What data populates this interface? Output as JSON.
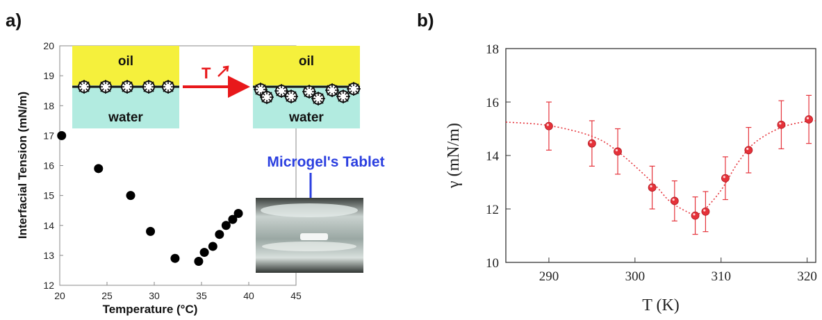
{
  "panels": {
    "a_label": "a)",
    "b_label": "b)"
  },
  "colors": {
    "oil": "#f5f03c",
    "water": "#b2ebe0",
    "arrow_red": "#e8181b",
    "arrow_blue": "#2b3fe0",
    "series_b": "#e5323a"
  },
  "inset": {
    "oil_label": "oil",
    "water_label": "water",
    "arrow_label": "T",
    "tablet_label": "Microgel's Tablet"
  },
  "chart_data": [
    {
      "type": "scatter",
      "panel": "a",
      "xlabel": "Temperature (°C)",
      "ylabel": "Interfacial Tension (mN/m)",
      "xlim": [
        20,
        45
      ],
      "ylim": [
        12,
        20
      ],
      "xticks": [
        20,
        25,
        30,
        35,
        40,
        45
      ],
      "yticks": [
        12,
        13,
        14,
        15,
        16,
        17,
        18,
        19,
        20
      ],
      "grid": false,
      "x": [
        20.2,
        24.1,
        27.5,
        29.6,
        32.2,
        34.7,
        35.3,
        36.2,
        36.9,
        37.6,
        38.3,
        38.9
      ],
      "y": [
        17.0,
        15.9,
        15.0,
        13.8,
        12.9,
        12.8,
        13.1,
        13.3,
        13.7,
        14.0,
        14.2,
        14.4
      ]
    },
    {
      "type": "scatter",
      "panel": "b",
      "xlabel": "T (K)",
      "ylabel": "γ (mN/m)",
      "xlim": [
        285,
        321
      ],
      "ylim": [
        10,
        18
      ],
      "xticks": [
        290,
        300,
        310,
        320
      ],
      "yticks": [
        10,
        12,
        14,
        16,
        18
      ],
      "grid": false,
      "x": [
        290,
        295,
        298,
        302,
        304.6,
        307,
        308.2,
        310.5,
        313.2,
        317,
        320.2
      ],
      "y": [
        15.1,
        14.45,
        14.15,
        12.8,
        12.3,
        11.75,
        11.9,
        13.15,
        14.2,
        15.15,
        15.35
      ],
      "err": [
        0.9,
        0.85,
        0.85,
        0.8,
        0.75,
        0.7,
        0.75,
        0.8,
        0.85,
        0.9,
        0.9
      ],
      "fit_x": [
        285,
        290,
        295,
        298,
        302,
        304,
        306,
        307,
        308,
        310,
        312,
        314,
        317,
        320,
        321
      ],
      "fit_y": [
        15.25,
        15.12,
        14.72,
        14.15,
        13.0,
        12.3,
        11.9,
        11.8,
        11.95,
        12.7,
        13.75,
        14.5,
        15.05,
        15.28,
        15.3
      ]
    }
  ]
}
